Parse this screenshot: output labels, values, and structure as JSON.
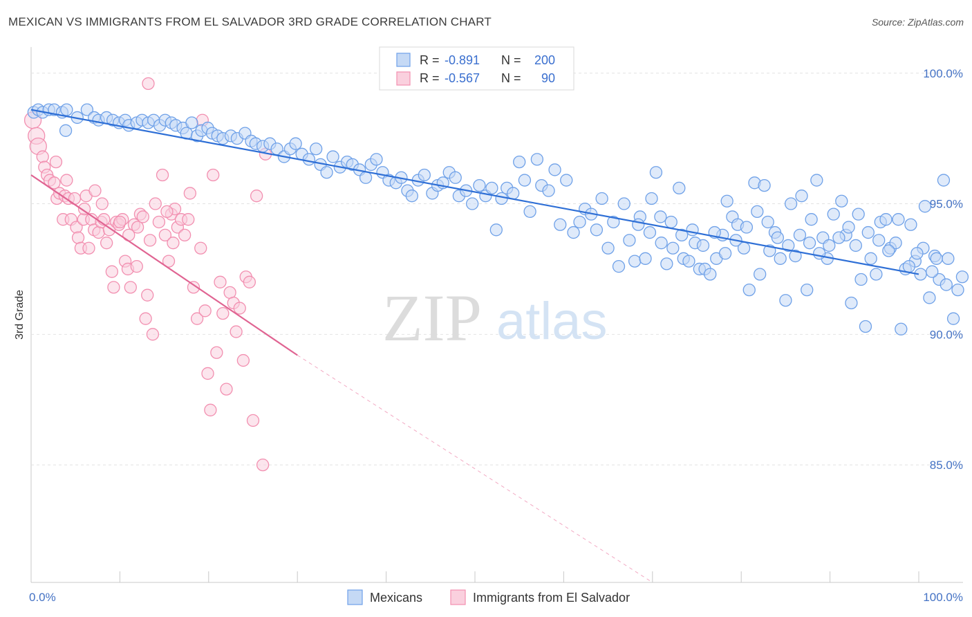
{
  "title": "MEXICAN VS IMMIGRANTS FROM EL SALVADOR 3RD GRADE CORRELATION CHART",
  "source": "Source: ZipAtlas.com",
  "watermark": {
    "zip": "ZIP",
    "atlas": "atlas"
  },
  "legend": {
    "rows": [
      {
        "r_label": "R =",
        "r_value": "-0.891",
        "n_label": "N =",
        "n_value": "200"
      },
      {
        "r_label": "R =",
        "r_value": "-0.567",
        "n_label": "N =",
        "n_value": "90"
      }
    ]
  },
  "bottom_legend": [
    "Mexicans",
    "Immigrants from El Salvador"
  ],
  "colors": {
    "blue": "#6fa1e8",
    "blue_fill": "#c5d9f5",
    "blue_line": "#2e6fd6",
    "pink": "#f28fb0",
    "pink_fill": "#fad0de",
    "pink_line": "#e06492"
  },
  "chart_data": {
    "type": "scatter",
    "title": "MEXICAN VS IMMIGRANTS FROM EL SALVADOR 3RD GRADE CORRELATION CHART",
    "xlabel": "",
    "ylabel": "3rd Grade",
    "xlim": [
      0,
      100
    ],
    "ylim": [
      80.5,
      101
    ],
    "x_tick_labels": [
      "0.0%",
      "100.0%"
    ],
    "y_ticks": [
      85,
      90,
      95,
      100
    ],
    "y_tick_labels": [
      "85.0%",
      "90.0%",
      "95.0%",
      "100.0%"
    ],
    "grid": true,
    "legend_position": "top-center",
    "series": [
      {
        "name": "Mexicans",
        "color": "#6fa1e8",
        "trend": {
          "x": [
            0,
            100
          ],
          "y": [
            98.6,
            92.3
          ]
        },
        "points": [
          [
            0.3,
            98.5
          ],
          [
            0.8,
            98.6
          ],
          [
            1.3,
            98.5
          ],
          [
            2,
            98.6
          ],
          [
            2.6,
            98.6
          ],
          [
            3.5,
            98.5
          ],
          [
            4,
            98.6
          ],
          [
            3.9,
            97.8
          ],
          [
            5.2,
            98.3
          ],
          [
            6.3,
            98.6
          ],
          [
            7.1,
            98.3
          ],
          [
            7.6,
            98.2
          ],
          [
            8.5,
            98.3
          ],
          [
            9.2,
            98.2
          ],
          [
            9.9,
            98.1
          ],
          [
            10.6,
            98.2
          ],
          [
            11,
            98.0
          ],
          [
            11.9,
            98.1
          ],
          [
            12.5,
            98.2
          ],
          [
            13.2,
            98.1
          ],
          [
            13.8,
            98.2
          ],
          [
            14.5,
            98.0
          ],
          [
            15.1,
            98.2
          ],
          [
            15.8,
            98.1
          ],
          [
            16.3,
            98.0
          ],
          [
            17.1,
            97.9
          ],
          [
            17.5,
            97.7
          ],
          [
            18.1,
            98.1
          ],
          [
            18.7,
            97.6
          ],
          [
            19.2,
            97.8
          ],
          [
            19.9,
            97.9
          ],
          [
            20.4,
            97.7
          ],
          [
            21,
            97.6
          ],
          [
            21.6,
            97.5
          ],
          [
            22.5,
            97.6
          ],
          [
            23.2,
            97.5
          ],
          [
            24.1,
            97.7
          ],
          [
            24.8,
            97.4
          ],
          [
            25.3,
            97.3
          ],
          [
            26.1,
            97.2
          ],
          [
            26.9,
            97.3
          ],
          [
            27.7,
            97.1
          ],
          [
            28.5,
            96.8
          ],
          [
            29.2,
            97.1
          ],
          [
            29.8,
            97.3
          ],
          [
            30.5,
            96.9
          ],
          [
            31.3,
            96.7
          ],
          [
            32.1,
            97.1
          ],
          [
            32.6,
            96.5
          ],
          [
            33.3,
            96.2
          ],
          [
            34,
            96.8
          ],
          [
            34.8,
            96.4
          ],
          [
            35.6,
            96.6
          ],
          [
            36.2,
            96.5
          ],
          [
            37,
            96.3
          ],
          [
            37.7,
            96.0
          ],
          [
            38.3,
            96.5
          ],
          [
            38.9,
            96.7
          ],
          [
            39.6,
            96.2
          ],
          [
            40.3,
            95.9
          ],
          [
            41.1,
            95.8
          ],
          [
            41.7,
            96.0
          ],
          [
            42.4,
            95.5
          ],
          [
            42.9,
            95.3
          ],
          [
            43.6,
            95.9
          ],
          [
            44.3,
            96.1
          ],
          [
            45.2,
            95.4
          ],
          [
            45.8,
            95.7
          ],
          [
            46.4,
            95.8
          ],
          [
            47.1,
            96.2
          ],
          [
            47.8,
            96.0
          ],
          [
            48.2,
            95.3
          ],
          [
            49,
            95.5
          ],
          [
            49.7,
            95.0
          ],
          [
            50.5,
            95.7
          ],
          [
            51.2,
            95.3
          ],
          [
            51.9,
            95.6
          ],
          [
            52.4,
            94.0
          ],
          [
            53,
            95.2
          ],
          [
            53.6,
            95.6
          ],
          [
            54.3,
            95.4
          ],
          [
            55,
            96.6
          ],
          [
            55.6,
            95.9
          ],
          [
            56.2,
            94.7
          ],
          [
            57,
            96.7
          ],
          [
            57.5,
            95.7
          ],
          [
            58.3,
            95.5
          ],
          [
            59,
            96.3
          ],
          [
            59.6,
            94.2
          ],
          [
            60.3,
            95.9
          ],
          [
            61.1,
            93.9
          ],
          [
            61.8,
            94.3
          ],
          [
            62.4,
            94.8
          ],
          [
            63.1,
            94.6
          ],
          [
            63.7,
            94.0
          ],
          [
            64.3,
            95.2
          ],
          [
            65,
            93.3
          ],
          [
            65.6,
            94.3
          ],
          [
            66.2,
            92.6
          ],
          [
            66.8,
            95.0
          ],
          [
            67.4,
            93.6
          ],
          [
            68,
            92.8
          ],
          [
            68.6,
            94.5
          ],
          [
            69.2,
            92.9
          ],
          [
            69.9,
            95.2
          ],
          [
            70.4,
            96.2
          ],
          [
            71,
            93.5
          ],
          [
            71.6,
            92.7
          ],
          [
            72.3,
            93.3
          ],
          [
            73,
            95.6
          ],
          [
            73.5,
            92.9
          ],
          [
            74.1,
            92.8
          ],
          [
            74.8,
            93.5
          ],
          [
            75.3,
            92.5
          ],
          [
            75.9,
            92.5
          ],
          [
            76.5,
            92.3
          ],
          [
            77.2,
            92.9
          ],
          [
            77.9,
            93.8
          ],
          [
            78.4,
            95.1
          ],
          [
            79,
            94.5
          ],
          [
            79.6,
            94.2
          ],
          [
            80.3,
            93.3
          ],
          [
            80.9,
            91.7
          ],
          [
            81.5,
            95.8
          ],
          [
            82.1,
            92.3
          ],
          [
            82.6,
            95.7
          ],
          [
            83.2,
            93.2
          ],
          [
            83.8,
            93.9
          ],
          [
            84.4,
            92.9
          ],
          [
            85,
            91.3
          ],
          [
            85.6,
            95.0
          ],
          [
            86.1,
            93.0
          ],
          [
            86.8,
            95.3
          ],
          [
            87.4,
            91.7
          ],
          [
            87.9,
            94.4
          ],
          [
            88.5,
            95.9
          ],
          [
            89.2,
            93.7
          ],
          [
            89.7,
            92.9
          ],
          [
            90.4,
            94.6
          ],
          [
            91.3,
            95.1
          ],
          [
            91.8,
            93.8
          ],
          [
            92.4,
            91.2
          ],
          [
            92.9,
            93.4
          ],
          [
            93.5,
            92.1
          ],
          [
            94,
            90.3
          ],
          [
            94.6,
            92.9
          ],
          [
            95.2,
            92.3
          ],
          [
            95.7,
            94.3
          ],
          [
            96.3,
            94.4
          ],
          [
            96.8,
            93.3
          ],
          [
            97.4,
            93.5
          ],
          [
            98,
            90.2
          ],
          [
            98.5,
            92.5
          ],
          [
            99.1,
            94.2
          ],
          [
            99.6,
            92.8
          ],
          [
            100.2,
            92.3
          ],
          [
            100.7,
            94.9
          ],
          [
            101.2,
            91.4
          ],
          [
            101.8,
            93.0
          ],
          [
            102.3,
            92.1
          ],
          [
            102.8,
            95.9
          ],
          [
            103.3,
            92.9
          ],
          [
            103.9,
            90.6
          ],
          [
            104.4,
            91.7
          ],
          [
            104.9,
            92.2
          ],
          [
            100.5,
            93.3
          ],
          [
            101.5,
            92.4
          ],
          [
            102,
            92.9
          ],
          [
            103.1,
            91.9
          ],
          [
            99.8,
            93.1
          ],
          [
            98.9,
            92.6
          ],
          [
            97.7,
            94.4
          ],
          [
            96.6,
            93.2
          ],
          [
            95.5,
            93.6
          ],
          [
            94.3,
            93.9
          ],
          [
            93.2,
            94.6
          ],
          [
            92.1,
            94.1
          ],
          [
            91,
            93.7
          ],
          [
            89.9,
            93.4
          ],
          [
            88.8,
            93.1
          ],
          [
            87.7,
            93.5
          ],
          [
            86.6,
            93.8
          ],
          [
            85.3,
            93.4
          ],
          [
            84.1,
            93.7
          ],
          [
            83,
            94.3
          ],
          [
            81.8,
            94.7
          ],
          [
            80.6,
            94.1
          ],
          [
            79.4,
            93.6
          ],
          [
            78.2,
            93.1
          ],
          [
            77,
            93.9
          ],
          [
            75.7,
            93.4
          ],
          [
            74.5,
            94.0
          ],
          [
            73.3,
            93.8
          ],
          [
            72.1,
            94.3
          ],
          [
            70.9,
            94.5
          ],
          [
            69.7,
            93.9
          ],
          [
            68.4,
            94.2
          ]
        ]
      },
      {
        "name": "Immigrants from El Salvador",
        "color": "#f28fb0",
        "trend": {
          "x": [
            0,
            30
          ],
          "y": [
            96.1,
            89.2
          ]
        },
        "trend_extension": {
          "x": [
            30,
            70
          ],
          "y": [
            89.2,
            80.5
          ]
        },
        "points": [
          [
            0.2,
            98.2
          ],
          [
            0.6,
            97.6
          ],
          [
            0.8,
            97.2
          ],
          [
            1.3,
            96.8
          ],
          [
            1.5,
            96.4
          ],
          [
            1.8,
            96.1
          ],
          [
            2.1,
            95.9
          ],
          [
            2.6,
            95.8
          ],
          [
            2.8,
            96.6
          ],
          [
            2.9,
            95.2
          ],
          [
            3.2,
            95.4
          ],
          [
            3.6,
            94.4
          ],
          [
            3.8,
            95.3
          ],
          [
            4.2,
            95.2
          ],
          [
            4.5,
            94.4
          ],
          [
            4.9,
            95.2
          ],
          [
            5.1,
            94.1
          ],
          [
            5.3,
            93.7
          ],
          [
            5.6,
            93.3
          ],
          [
            5.9,
            94.4
          ],
          [
            6.2,
            95.3
          ],
          [
            6.5,
            93.3
          ],
          [
            6.8,
            94.4
          ],
          [
            7.1,
            94.0
          ],
          [
            7.2,
            95.5
          ],
          [
            7.6,
            93.9
          ],
          [
            7.9,
            94.3
          ],
          [
            8.2,
            94.4
          ],
          [
            8.5,
            93.5
          ],
          [
            8.8,
            94.0
          ],
          [
            9.1,
            92.4
          ],
          [
            9.3,
            91.8
          ],
          [
            9.6,
            94.3
          ],
          [
            9.9,
            94.2
          ],
          [
            10.3,
            94.4
          ],
          [
            10.6,
            92.8
          ],
          [
            10.9,
            92.5
          ],
          [
            11.2,
            91.8
          ],
          [
            11.6,
            94.2
          ],
          [
            11.9,
            92.6
          ],
          [
            12.3,
            94.6
          ],
          [
            12.6,
            94.5
          ],
          [
            12.9,
            90.6
          ],
          [
            13.1,
            91.5
          ],
          [
            13.4,
            93.6
          ],
          [
            13.7,
            90.0
          ],
          [
            14,
            95.0
          ],
          [
            14.4,
            94.3
          ],
          [
            14.8,
            96.1
          ],
          [
            15.1,
            93.8
          ],
          [
            15.5,
            92.8
          ],
          [
            15.8,
            94.6
          ],
          [
            16.2,
            94.8
          ],
          [
            16.5,
            94.1
          ],
          [
            16.9,
            94.4
          ],
          [
            17.3,
            93.8
          ],
          [
            17.7,
            94.4
          ],
          [
            17.9,
            95.4
          ],
          [
            18.3,
            91.8
          ],
          [
            18.7,
            90.6
          ],
          [
            19.1,
            93.3
          ],
          [
            19.3,
            98.2
          ],
          [
            19.6,
            90.9
          ],
          [
            19.9,
            88.5
          ],
          [
            20.2,
            87.1
          ],
          [
            20.5,
            96.1
          ],
          [
            20.9,
            89.3
          ],
          [
            21.3,
            92.0
          ],
          [
            21.6,
            90.8
          ],
          [
            22,
            87.9
          ],
          [
            22.4,
            91.6
          ],
          [
            22.8,
            91.2
          ],
          [
            23.1,
            90.1
          ],
          [
            23.5,
            91.0
          ],
          [
            23.9,
            89.0
          ],
          [
            24.2,
            92.2
          ],
          [
            24.6,
            92.0
          ],
          [
            25,
            86.7
          ],
          [
            25.4,
            95.3
          ],
          [
            26.1,
            85.0
          ],
          [
            26.4,
            96.9
          ],
          [
            13.2,
            99.6
          ],
          [
            10.0,
            94.3
          ],
          [
            11.0,
            93.8
          ],
          [
            12.0,
            94.1
          ],
          [
            15.3,
            94.7
          ],
          [
            16.0,
            93.5
          ],
          [
            8.0,
            95.0
          ],
          [
            6.0,
            94.8
          ],
          [
            4.0,
            95.9
          ]
        ]
      }
    ]
  }
}
